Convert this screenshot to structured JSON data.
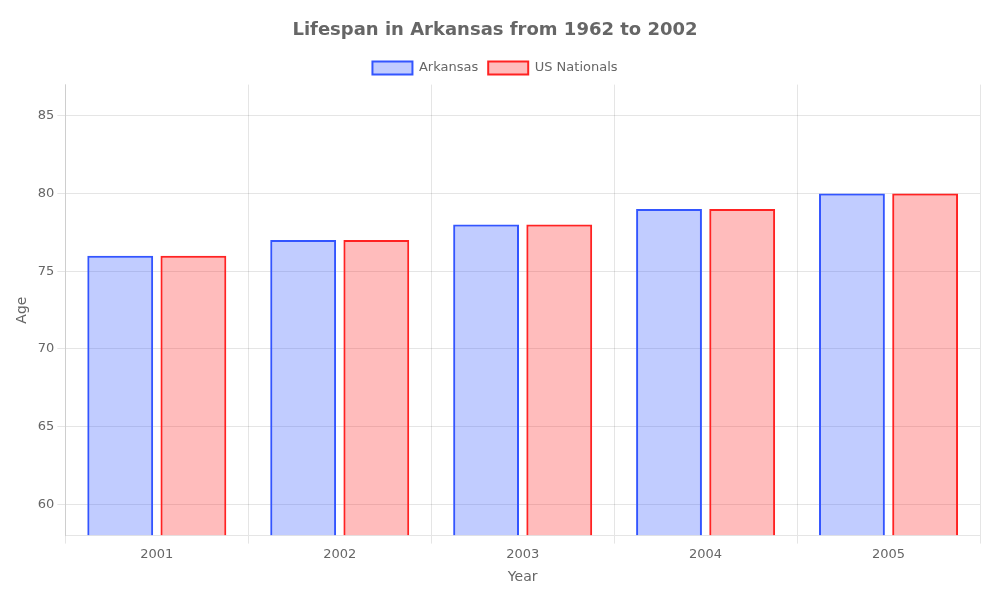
{
  "chart_data": {
    "type": "bar",
    "title": "Lifespan in Arkansas from 1962 to 2002",
    "xlabel": "Year",
    "ylabel": "Age",
    "categories": [
      "2001",
      "2002",
      "2003",
      "2004",
      "2005"
    ],
    "series": [
      {
        "name": "Arkansas",
        "color": "#3355ff",
        "values": [
          76,
          77,
          78,
          79,
          80
        ]
      },
      {
        "name": "US Nationals",
        "color": "#ff2222",
        "values": [
          76,
          77,
          78,
          79,
          80
        ]
      }
    ],
    "ylim": [
      58,
      87
    ],
    "yticks": [
      60,
      65,
      70,
      75,
      80,
      85
    ],
    "grid": true,
    "legend": "top"
  }
}
